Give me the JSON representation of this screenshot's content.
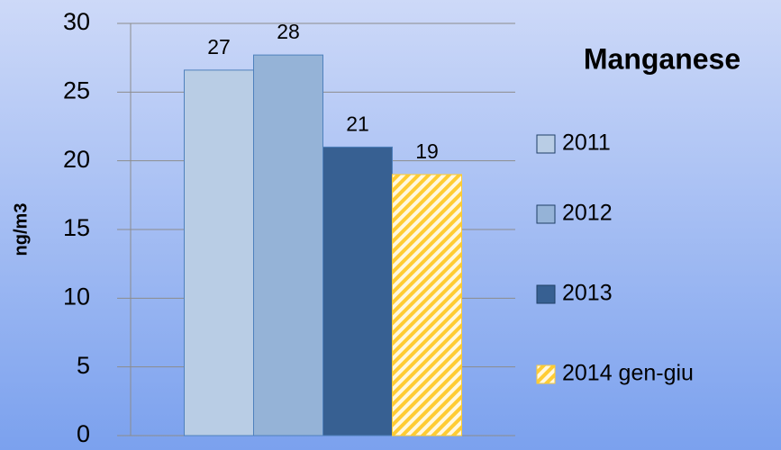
{
  "chart_data": {
    "type": "bar",
    "title": "Manganese",
    "y_label": "ng/m3",
    "categories": [
      null
    ],
    "series": [
      {
        "name": "2011",
        "color": "#b9cde5",
        "values": [
          26.6
        ],
        "value_labels": [
          "27"
        ]
      },
      {
        "name": "2012",
        "color": "#95b3d7",
        "values": [
          27.7
        ],
        "value_labels": [
          "28"
        ]
      },
      {
        "name": "2013",
        "color": "#376092",
        "values": [
          21
        ],
        "value_labels": [
          "21"
        ]
      },
      {
        "name": "2014 gen-giu",
        "color": "#ffcc33",
        "hatch": true,
        "values": [
          19
        ],
        "value_labels": [
          "19"
        ]
      }
    ],
    "ylim": [
      0,
      30
    ],
    "yticks": [
      0,
      5,
      10,
      15,
      20,
      25,
      30
    ],
    "grid": true,
    "legend": "right"
  }
}
